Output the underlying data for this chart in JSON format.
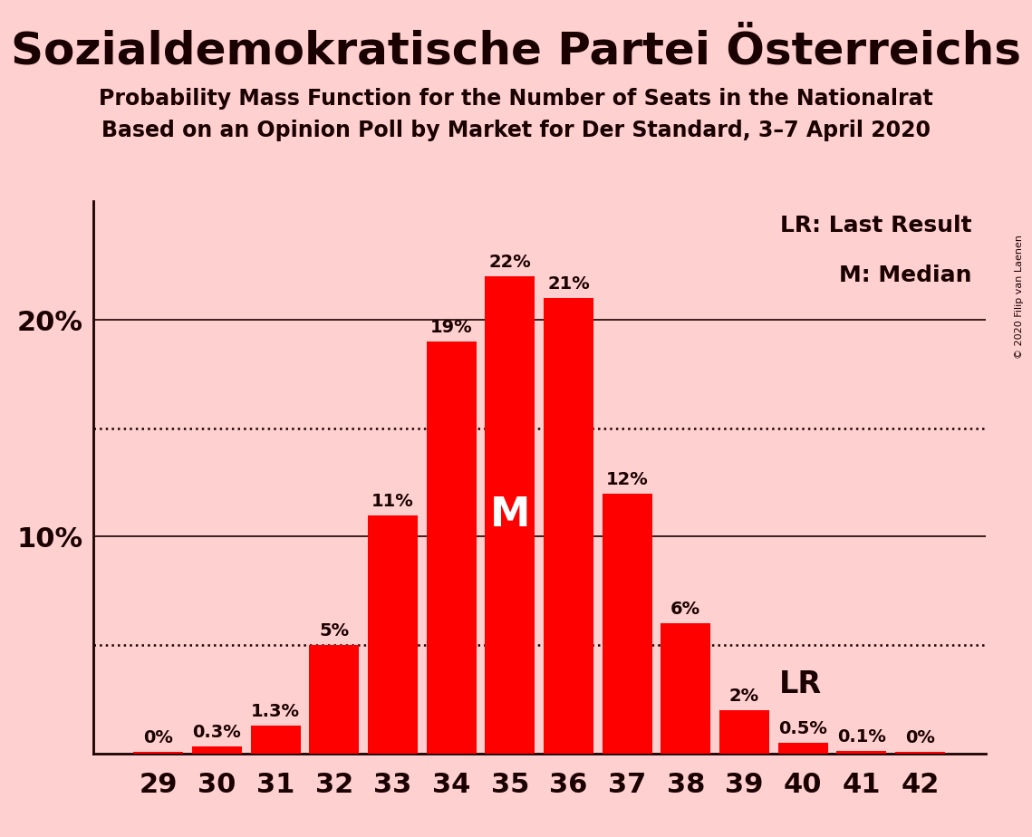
{
  "title": "Sozialdemokratische Partei Österreichs",
  "subtitle1": "Probability Mass Function for the Number of Seats in the Nationalrat",
  "subtitle2": "Based on an Opinion Poll by Market for Der Standard, 3–7 April 2020",
  "copyright": "© 2020 Filip van Laenen",
  "categories": [
    29,
    30,
    31,
    32,
    33,
    34,
    35,
    36,
    37,
    38,
    39,
    40,
    41,
    42
  ],
  "values": [
    0.05,
    0.3,
    1.3,
    5.0,
    11.0,
    19.0,
    22.0,
    21.0,
    12.0,
    6.0,
    2.0,
    0.5,
    0.1,
    0.05
  ],
  "labels": [
    "0%",
    "0.3%",
    "1.3%",
    "5%",
    "11%",
    "19%",
    "22%",
    "21%",
    "12%",
    "6%",
    "2%",
    "0.5%",
    "0.1%",
    "0%"
  ],
  "bar_color": "#FF0000",
  "background_color": "#FFD0D0",
  "text_color": "#1a0000",
  "yticks": [
    10,
    20
  ],
  "ylim": [
    0,
    25.5
  ],
  "median_bar": 35,
  "lr_bar": 39,
  "dotted_lines": [
    5.0,
    15.0
  ],
  "legend_lr": "LR: Last Result",
  "legend_m": "M: Median",
  "title_fontsize": 36,
  "subtitle_fontsize": 17,
  "ytick_fontsize": 22,
  "xtick_fontsize": 22,
  "label_fontsize": 14,
  "legend_fontsize": 18
}
